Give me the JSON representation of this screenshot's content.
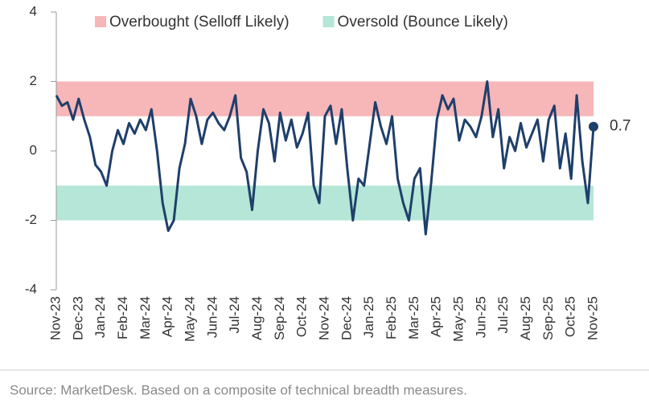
{
  "chart_data": {
    "type": "line",
    "categories": [
      "Nov-23",
      null,
      null,
      null,
      "Dec-23",
      null,
      null,
      null,
      "Jan-24",
      null,
      null,
      null,
      "Feb-24",
      null,
      null,
      null,
      "Mar-24",
      null,
      null,
      null,
      "Apr-24",
      null,
      null,
      null,
      "May-24",
      null,
      null,
      null,
      "Jun-24",
      null,
      null,
      null,
      "Jul-24",
      null,
      null,
      null,
      "Aug-24",
      null,
      null,
      null,
      "Sep-24",
      null,
      null,
      null,
      "Oct-24",
      null,
      null,
      null,
      "Nov-24",
      null,
      null,
      null,
      "Dec-24",
      null,
      null,
      null,
      "Jan-25",
      null,
      null,
      null,
      "Feb-25",
      null,
      null,
      null,
      "Mar-25",
      null,
      null,
      null,
      "Apr-25",
      null,
      null,
      null,
      "May-25",
      null,
      null,
      null,
      "Jun-25",
      null,
      null,
      null,
      "Jul-25",
      null,
      null,
      null,
      "Aug-25",
      null,
      null,
      null,
      "Sep-25",
      null,
      null,
      null,
      "Oct-25",
      null,
      null,
      null,
      "Nov-25"
    ],
    "series": [
      {
        "color": "#1f3f6b",
        "values": [
          1.6,
          1.3,
          1.4,
          0.9,
          1.5,
          0.9,
          0.4,
          -0.4,
          -0.6,
          -1.0,
          0.0,
          0.6,
          0.2,
          0.8,
          0.5,
          0.9,
          0.6,
          1.2,
          0.0,
          -1.5,
          -2.3,
          -2.0,
          -0.5,
          0.2,
          1.5,
          1.0,
          0.2,
          0.9,
          1.1,
          0.8,
          0.6,
          1.0,
          1.6,
          -0.2,
          -0.6,
          -1.7,
          0.0,
          1.2,
          0.8,
          -0.3,
          1.1,
          0.3,
          0.9,
          0.1,
          0.5,
          1.1,
          -1.0,
          -1.5,
          1.0,
          1.3,
          0.2,
          1.2,
          -0.5,
          -2.0,
          -0.8,
          -1.0,
          0.2,
          1.4,
          0.7,
          0.2,
          1.0,
          -0.8,
          -1.5,
          -2.0,
          -0.8,
          -0.5,
          -2.4,
          -0.9,
          0.9,
          1.6,
          1.2,
          1.5,
          0.3,
          0.9,
          0.7,
          0.4,
          1.0,
          2.0,
          0.4,
          1.2,
          -0.5,
          0.4,
          0.0,
          0.8,
          0.1,
          0.5,
          0.9,
          -0.3,
          0.9,
          1.3,
          -0.5,
          0.5,
          -0.8,
          1.6,
          -0.3,
          -1.5,
          0.7
        ]
      }
    ],
    "bands": [
      {
        "name": "Overbought (Selloff Likely)",
        "color": "#f7b6b8",
        "range": [
          1,
          2
        ]
      },
      {
        "name": "Oversold (Bounce Likely)",
        "color": "#b5e6d7",
        "range": [
          -2,
          -1
        ]
      }
    ],
    "ylim": [
      -4,
      4
    ],
    "yticks": [
      -4,
      -2,
      0,
      2,
      4
    ],
    "source": "Source: MarketDesk. Based on a composite of technical breadth measures."
  }
}
